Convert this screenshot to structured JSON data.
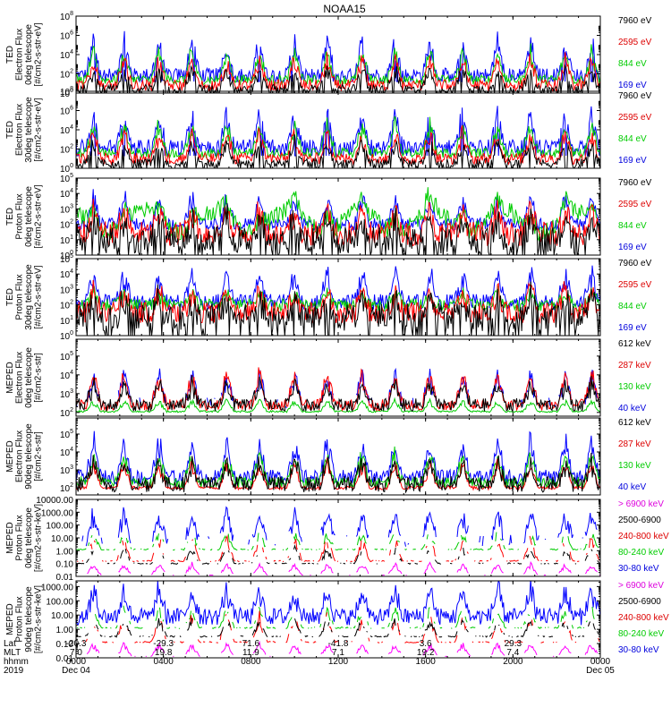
{
  "title": "NOAA15",
  "chart_data": {
    "type": "line",
    "x_range_hours": [
      0,
      24
    ],
    "panels": [
      {
        "name": "ted-electron-0deg",
        "ylabel": [
          "TED",
          "Electron Flux",
          "0deg telescope",
          "[#/cm2-s-str-eV]"
        ],
        "log": true,
        "ticks": [
          {
            "v": 0,
            "label": "10",
            "exp": "0"
          },
          {
            "v": 2,
            "label": "10",
            "exp": "2"
          },
          {
            "v": 4,
            "label": "10",
            "exp": "4"
          },
          {
            "v": 6,
            "label": "10",
            "exp": "6"
          },
          {
            "v": 8,
            "label": "10",
            "exp": "8"
          }
        ],
        "ylim": [
          0,
          8
        ],
        "legend": [
          {
            "text": "7960 eV",
            "color": "#000000"
          },
          {
            "text": "2595 eV",
            "color": "#dd0000"
          },
          {
            "text": "844 eV",
            "color": "#00cc00"
          },
          {
            "text": "169 eV",
            "color": "#0000dd"
          }
        ],
        "series": [
          {
            "color": "#0000ff",
            "base": 1.9,
            "noise": 0.7,
            "spike": 3.6,
            "floor": 1.2
          },
          {
            "color": "#00cc00",
            "base": 1.4,
            "noise": 0.5,
            "spike": 3.0
          },
          {
            "color": "#ff0000",
            "base": 0.8,
            "noise": 0.6,
            "spike": 2.7
          },
          {
            "color": "#000000",
            "base": 0.4,
            "noise": 0.5,
            "spike": 2.2,
            "floor": 0.0
          }
        ]
      },
      {
        "name": "ted-electron-30deg",
        "ylabel": [
          "TED",
          "Electron Flux",
          "30deg telescope",
          "[#/cm2-s-str-eV]"
        ],
        "log": true,
        "ticks": [
          {
            "v": 0,
            "label": "10",
            "exp": "0"
          },
          {
            "v": 2,
            "label": "10",
            "exp": "2"
          },
          {
            "v": 4,
            "label": "10",
            "exp": "4"
          },
          {
            "v": 6,
            "label": "10",
            "exp": "6"
          },
          {
            "v": 8,
            "label": "10",
            "exp": "8"
          }
        ],
        "ylim": [
          0,
          8
        ],
        "legend": [
          {
            "text": "7960 eV",
            "color": "#000000"
          },
          {
            "text": "2595 eV",
            "color": "#dd0000"
          },
          {
            "text": "844 eV",
            "color": "#00cc00"
          },
          {
            "text": "169 eV",
            "color": "#0000dd"
          }
        ],
        "series": [
          {
            "color": "#0000ff",
            "base": 2.3,
            "noise": 0.7,
            "spike": 3.5,
            "floor": 1.3
          },
          {
            "color": "#00cc00",
            "base": 1.6,
            "noise": 0.5,
            "spike": 3.0
          },
          {
            "color": "#ff0000",
            "base": 1.0,
            "noise": 0.6,
            "spike": 2.8
          },
          {
            "color": "#000000",
            "base": 0.5,
            "noise": 0.5,
            "spike": 2.2,
            "floor": 0.0
          }
        ]
      },
      {
        "name": "ted-proton-0deg",
        "ylabel": [
          "TED",
          "Proton Flux",
          "0deg telescope",
          "[#/cm2-s-str-eV]"
        ],
        "log": true,
        "ticks": [
          {
            "v": 0,
            "label": "10",
            "exp": "0"
          },
          {
            "v": 1,
            "label": "10",
            "exp": "1"
          },
          {
            "v": 2,
            "label": "10",
            "exp": "2"
          },
          {
            "v": 3,
            "label": "10",
            "exp": "3"
          },
          {
            "v": 4,
            "label": "10",
            "exp": "4"
          },
          {
            "v": 5,
            "label": "10",
            "exp": "5"
          }
        ],
        "ylim": [
          0,
          5
        ],
        "legend": [
          {
            "text": "7960 eV",
            "color": "#000000"
          },
          {
            "text": "2595 eV",
            "color": "#dd0000"
          },
          {
            "text": "844 eV",
            "color": "#00cc00"
          },
          {
            "text": "169 eV",
            "color": "#0000dd"
          }
        ],
        "series": [
          {
            "color": "#0000ff",
            "base": 2.0,
            "noise": 0.4,
            "spike": 1.8
          },
          {
            "color": "#00cc00",
            "base": 2.2,
            "noise": 0.6,
            "spike": 1.2,
            "wave": 0.7
          },
          {
            "color": "#ff0000",
            "base": 1.4,
            "noise": 0.8,
            "spike": 1.6
          },
          {
            "color": "#000000",
            "base": 1.0,
            "noise": 0.9,
            "spike": 1.4,
            "floor": 0.0
          }
        ]
      },
      {
        "name": "ted-proton-30deg",
        "ylabel": [
          "TED",
          "Proton Flux",
          "30deg telescope",
          "[#/cm2-s-str-eV]"
        ],
        "log": true,
        "ticks": [
          {
            "v": 0,
            "label": "10",
            "exp": "0"
          },
          {
            "v": 1,
            "label": "10",
            "exp": "1"
          },
          {
            "v": 2,
            "label": "10",
            "exp": "2"
          },
          {
            "v": 3,
            "label": "10",
            "exp": "3"
          },
          {
            "v": 4,
            "label": "10",
            "exp": "4"
          },
          {
            "v": 5,
            "label": "10",
            "exp": "5"
          }
        ],
        "ylim": [
          0,
          5
        ],
        "legend": [
          {
            "text": "7960 eV",
            "color": "#000000"
          },
          {
            "text": "2595 eV",
            "color": "#dd0000"
          },
          {
            "text": "844 eV",
            "color": "#00cc00"
          },
          {
            "text": "169 eV",
            "color": "#0000dd"
          }
        ],
        "series": [
          {
            "color": "#0000ff",
            "base": 2.2,
            "noise": 0.5,
            "spike": 1.9
          },
          {
            "color": "#00cc00",
            "base": 2.0,
            "noise": 0.4,
            "spike": 0.9
          },
          {
            "color": "#ff0000",
            "base": 1.5,
            "noise": 0.7,
            "spike": 1.5
          },
          {
            "color": "#000000",
            "base": 1.2,
            "noise": 0.9,
            "spike": 1.3,
            "floor": 0.0
          }
        ]
      },
      {
        "name": "meped-electron-0deg",
        "ylabel": [
          "MEPED",
          "Electron Flux",
          "0deg telescope",
          "[#/cm2-s-str]"
        ],
        "log": true,
        "ticks": [
          {
            "v": 2,
            "label": "10",
            "exp": "2"
          },
          {
            "v": 3,
            "label": "10",
            "exp": "3"
          },
          {
            "v": 4,
            "label": "10",
            "exp": "4"
          },
          {
            "v": 5,
            "label": "10",
            "exp": "5"
          }
        ],
        "ylim": [
          1.8,
          5.9
        ],
        "legend": [
          {
            "text": "612 keV",
            "color": "#000000"
          },
          {
            "text": "287 keV",
            "color": "#dd0000"
          },
          {
            "text": "130 keV",
            "color": "#00cc00"
          },
          {
            "text": "40 keV",
            "color": "#0000dd"
          }
        ],
        "series": [
          {
            "color": "#0000ff",
            "base": 2.5,
            "noise": 0.3,
            "spike": 1.6,
            "sparse": true
          },
          {
            "color": "#00cc00",
            "base": 2.05,
            "noise": 0.05,
            "spike": 0.6
          },
          {
            "color": "#ff0000",
            "base": 2.4,
            "noise": 0.3,
            "spike": 1.7
          },
          {
            "color": "#000000",
            "base": 2.4,
            "noise": 0.35,
            "spike": 1.2
          }
        ]
      },
      {
        "name": "meped-electron-90deg",
        "ylabel": [
          "MEPED",
          "Electron Flux",
          "90deg telescope",
          "[#/cm2-s-str]"
        ],
        "log": true,
        "ticks": [
          {
            "v": 2,
            "label": "10",
            "exp": "2"
          },
          {
            "v": 3,
            "label": "10",
            "exp": "3"
          },
          {
            "v": 4,
            "label": "10",
            "exp": "4"
          },
          {
            "v": 5,
            "label": "10",
            "exp": "5"
          }
        ],
        "ylim": [
          1.6,
          5.9
        ],
        "legend": [
          {
            "text": "612 keV",
            "color": "#000000"
          },
          {
            "text": "287 keV",
            "color": "#dd0000"
          },
          {
            "text": "130 keV",
            "color": "#00cc00"
          },
          {
            "text": "40 keV",
            "color": "#0000dd"
          }
        ],
        "series": [
          {
            "color": "#0000ff",
            "base": 2.6,
            "noise": 0.4,
            "spike": 2.0
          },
          {
            "color": "#00cc00",
            "base": 2.3,
            "noise": 0.3,
            "spike": 1.6
          },
          {
            "color": "#ff0000",
            "base": 2.0,
            "noise": 0.1,
            "spike": 1.4
          },
          {
            "color": "#000000",
            "base": 2.2,
            "noise": 0.45,
            "spike": 1.3
          }
        ]
      },
      {
        "name": "meped-proton-0deg",
        "ylabel": [
          "MEPED",
          "Proton Flux",
          "0deg telescope",
          "[#/cm2-s-str-keV]"
        ],
        "log": true,
        "ticks": [
          {
            "v": -2,
            "label": "0.01"
          },
          {
            "v": -1,
            "label": "0.10"
          },
          {
            "v": 0,
            "label": "1.00"
          },
          {
            "v": 1,
            "label": "10.00"
          },
          {
            "v": 2,
            "label": "100.00"
          },
          {
            "v": 3,
            "label": "1000.00"
          },
          {
            "v": 4,
            "label": "10000.00"
          }
        ],
        "ylim": [
          -2,
          4
        ],
        "legend": [
          {
            "text": "> 6900 keV",
            "color": "#dd00dd"
          },
          {
            "text": "2500-6900",
            "color": "#000000"
          },
          {
            "text": "240-800 keV",
            "color": "#dd0000"
          },
          {
            "text": "80-240 keV",
            "color": "#00cc00"
          },
          {
            "text": "30-80 keV",
            "color": "#0000dd"
          }
        ],
        "series": [
          {
            "color": "#0000ff",
            "base": 0.8,
            "noise": 0.5,
            "spike": 2.2,
            "sparse": true
          },
          {
            "color": "#00cc00",
            "base": 0.1,
            "noise": 0.05,
            "spike": 1.3,
            "dashed": true
          },
          {
            "color": "#ff0000",
            "base": -0.8,
            "noise": 0.05,
            "spike": 1.8,
            "dashed": true
          },
          {
            "color": "#000000",
            "base": -1.0,
            "noise": 0.05,
            "spike": 1.2,
            "dashed": true
          },
          {
            "color": "#ff00ff",
            "base": -1.9,
            "noise": 0.0,
            "spike": 0.9,
            "sparse": true
          }
        ]
      },
      {
        "name": "meped-proton-90deg",
        "ylabel": [
          "MEPED",
          "Proton Flux",
          "90deg telescope",
          "[#/cm2-s-str-keV]"
        ],
        "log": true,
        "ticks": [
          {
            "v": -2,
            "label": "0.01"
          },
          {
            "v": -1,
            "label": "0.10"
          },
          {
            "v": 0,
            "label": "1.00"
          },
          {
            "v": 1,
            "label": "10.00"
          },
          {
            "v": 2,
            "label": "100.00"
          },
          {
            "v": 3,
            "label": "1000.00"
          }
        ],
        "ylim": [
          -2,
          3.4
        ],
        "legend": [
          {
            "text": "> 6900 keV",
            "color": "#dd00dd"
          },
          {
            "text": "2500-6900",
            "color": "#000000"
          },
          {
            "text": "240-800 keV",
            "color": "#dd0000"
          },
          {
            "text": "80-240 keV",
            "color": "#00cc00"
          },
          {
            "text": "30-80 keV",
            "color": "#0000dd"
          }
        ],
        "series": [
          {
            "color": "#0000ff",
            "base": 0.9,
            "noise": 0.6,
            "spike": 2.0
          },
          {
            "color": "#00cc00",
            "base": 0.1,
            "noise": 0.05,
            "spike": 1.4,
            "dashed": true
          },
          {
            "color": "#ff0000",
            "base": -0.9,
            "noise": 0.05,
            "spike": 1.9,
            "dashed": true
          },
          {
            "color": "#000000",
            "base": -0.5,
            "noise": 0.05,
            "spike": 1.2,
            "dashed": true
          },
          {
            "color": "#ff00ff",
            "base": -1.9,
            "noise": 0.0,
            "spike": 0.9,
            "sparse": true
          }
        ]
      }
    ],
    "peaks_hours": [
      0.8,
      2.2,
      3.8,
      5.3,
      6.9,
      8.4,
      10.0,
      11.5,
      13.1,
      14.6,
      16.2,
      17.7,
      19.3,
      20.8,
      22.4,
      23.6
    ],
    "x_axis": {
      "row_labels": [
        "Lat",
        "MLT",
        "hhmm",
        "2019"
      ],
      "ticks": [
        {
          "hour": 0,
          "lat": "-20.3",
          "mlt": "7.0",
          "hhmm": "0000",
          "date": "Dec 04"
        },
        {
          "hour": 4,
          "lat": "-29.3",
          "mlt": "19.8",
          "hhmm": "0400",
          "date": ""
        },
        {
          "hour": 8,
          "lat": "71.6",
          "mlt": "11.9",
          "hhmm": "0800",
          "date": ""
        },
        {
          "hour": 12,
          "lat": "-41.8",
          "mlt": "7.1",
          "hhmm": "1200",
          "date": ""
        },
        {
          "hour": 16,
          "lat": "3.6",
          "mlt": "19.2",
          "hhmm": "1600",
          "date": ""
        },
        {
          "hour": 20,
          "lat": "29.3",
          "mlt": "7.4",
          "hhmm": "2000",
          "date": ""
        },
        {
          "hour": 24,
          "lat": "",
          "mlt": "",
          "hhmm": "0000",
          "date": "Dec 05"
        }
      ]
    }
  }
}
